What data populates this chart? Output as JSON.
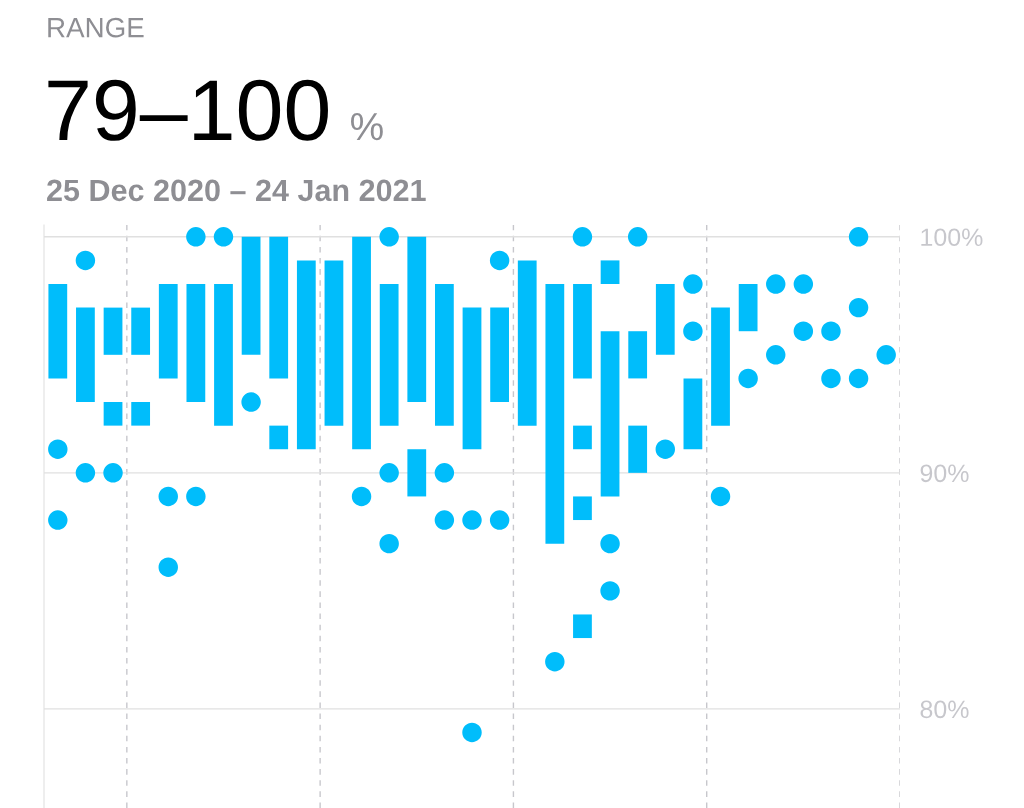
{
  "chart_data": {
    "type": "bar",
    "title": "RANGE",
    "subtitle": "25 Dec 2020 – 24 Jan 2021",
    "annotations": [
      "79–100",
      "%"
    ],
    "categories": [
      null,
      null,
      null,
      null,
      null,
      null,
      null,
      null,
      null,
      null,
      null,
      null,
      null,
      null,
      null,
      null,
      null,
      null,
      null,
      null,
      null,
      null,
      null,
      null,
      null,
      null,
      null,
      null,
      null,
      null,
      null
    ],
    "series": [
      {
        "color": "#00bdfb",
        "base": [
          94,
          93,
          95,
          95,
          94,
          93,
          92,
          95,
          94,
          91,
          92,
          91,
          92,
          93,
          92,
          91,
          93,
          92,
          87,
          94,
          98,
          94,
          95,
          91,
          92,
          96,
          null,
          null,
          null,
          null,
          null
        ],
        "values": [
          4,
          4,
          2,
          2,
          4,
          5,
          6,
          5,
          6,
          8,
          7,
          9,
          6,
          7,
          6,
          6,
          4,
          7,
          11,
          4,
          1,
          2,
          3,
          3,
          5,
          2,
          null,
          null,
          null,
          null,
          null
        ]
      },
      {
        "color": "#00bdfb",
        "base": [
          null,
          null,
          92,
          92,
          null,
          null,
          null,
          null,
          91,
          null,
          null,
          null,
          null,
          89,
          null,
          null,
          null,
          null,
          null,
          91,
          89,
          90,
          null,
          null,
          null,
          null,
          null,
          null,
          null,
          null,
          null
        ],
        "values": [
          null,
          null,
          1,
          1,
          null,
          null,
          null,
          null,
          1,
          null,
          null,
          null,
          null,
          2,
          null,
          null,
          null,
          null,
          null,
          1,
          7,
          2,
          null,
          null,
          null,
          null,
          null,
          null,
          null,
          null,
          null
        ]
      },
      {
        "color": "#00bdfb",
        "base": [
          null,
          null,
          null,
          null,
          null,
          null,
          null,
          null,
          null,
          null,
          null,
          null,
          null,
          null,
          null,
          null,
          null,
          null,
          null,
          88,
          null,
          null,
          null,
          null,
          null,
          null,
          null,
          null,
          null,
          null,
          null
        ],
        "values": [
          null,
          null,
          null,
          null,
          null,
          null,
          null,
          null,
          null,
          null,
          null,
          null,
          null,
          null,
          null,
          null,
          null,
          null,
          null,
          1,
          null,
          null,
          null,
          null,
          null,
          null,
          null,
          null,
          null,
          null,
          null
        ]
      },
      {
        "color": "#00bdfb",
        "base": [
          null,
          null,
          null,
          null,
          null,
          null,
          null,
          null,
          null,
          null,
          null,
          null,
          null,
          null,
          null,
          null,
          null,
          null,
          null,
          83,
          null,
          null,
          null,
          null,
          null,
          null,
          null,
          null,
          null,
          null,
          null
        ],
        "values": [
          null,
          null,
          null,
          null,
          null,
          null,
          null,
          null,
          null,
          null,
          null,
          null,
          null,
          null,
          null,
          null,
          null,
          null,
          null,
          1,
          null,
          null,
          null,
          null,
          null,
          null,
          null,
          null,
          null,
          null,
          null
        ]
      },
      {
        "type": "scatter",
        "color": "#00bdfb",
        "values": [
          91,
          99,
          90,
          null,
          89,
          100,
          100,
          93,
          null,
          null,
          null,
          89,
          100,
          null,
          90,
          88,
          99,
          null,
          82,
          100,
          87,
          100,
          91,
          98,
          89,
          94,
          98,
          98,
          96,
          100,
          95
        ]
      },
      {
        "type": "scatter",
        "color": "#00bdfb",
        "values": [
          88,
          90,
          null,
          null,
          86,
          89,
          null,
          null,
          null,
          null,
          null,
          null,
          90,
          null,
          88,
          79,
          88,
          null,
          null,
          null,
          85,
          null,
          null,
          96,
          null,
          null,
          95,
          96,
          94,
          97,
          null
        ]
      },
      {
        "type": "scatter",
        "color": "#00bdfb",
        "values": [
          null,
          null,
          null,
          null,
          null,
          null,
          null,
          null,
          null,
          null,
          null,
          null,
          87,
          null,
          null,
          null,
          null,
          null,
          null,
          null,
          null,
          null,
          null,
          null,
          null,
          null,
          null,
          null,
          null,
          94,
          null
        ]
      }
    ],
    "ylim": [
      75.8,
      100.5
    ],
    "yticks": [
      {
        "value": 80,
        "label": "80%"
      },
      {
        "value": 90,
        "label": "90%"
      },
      {
        "value": 100,
        "label": "100%"
      }
    ],
    "tick_labels": "y",
    "grid": true,
    "marker": "circle"
  }
}
